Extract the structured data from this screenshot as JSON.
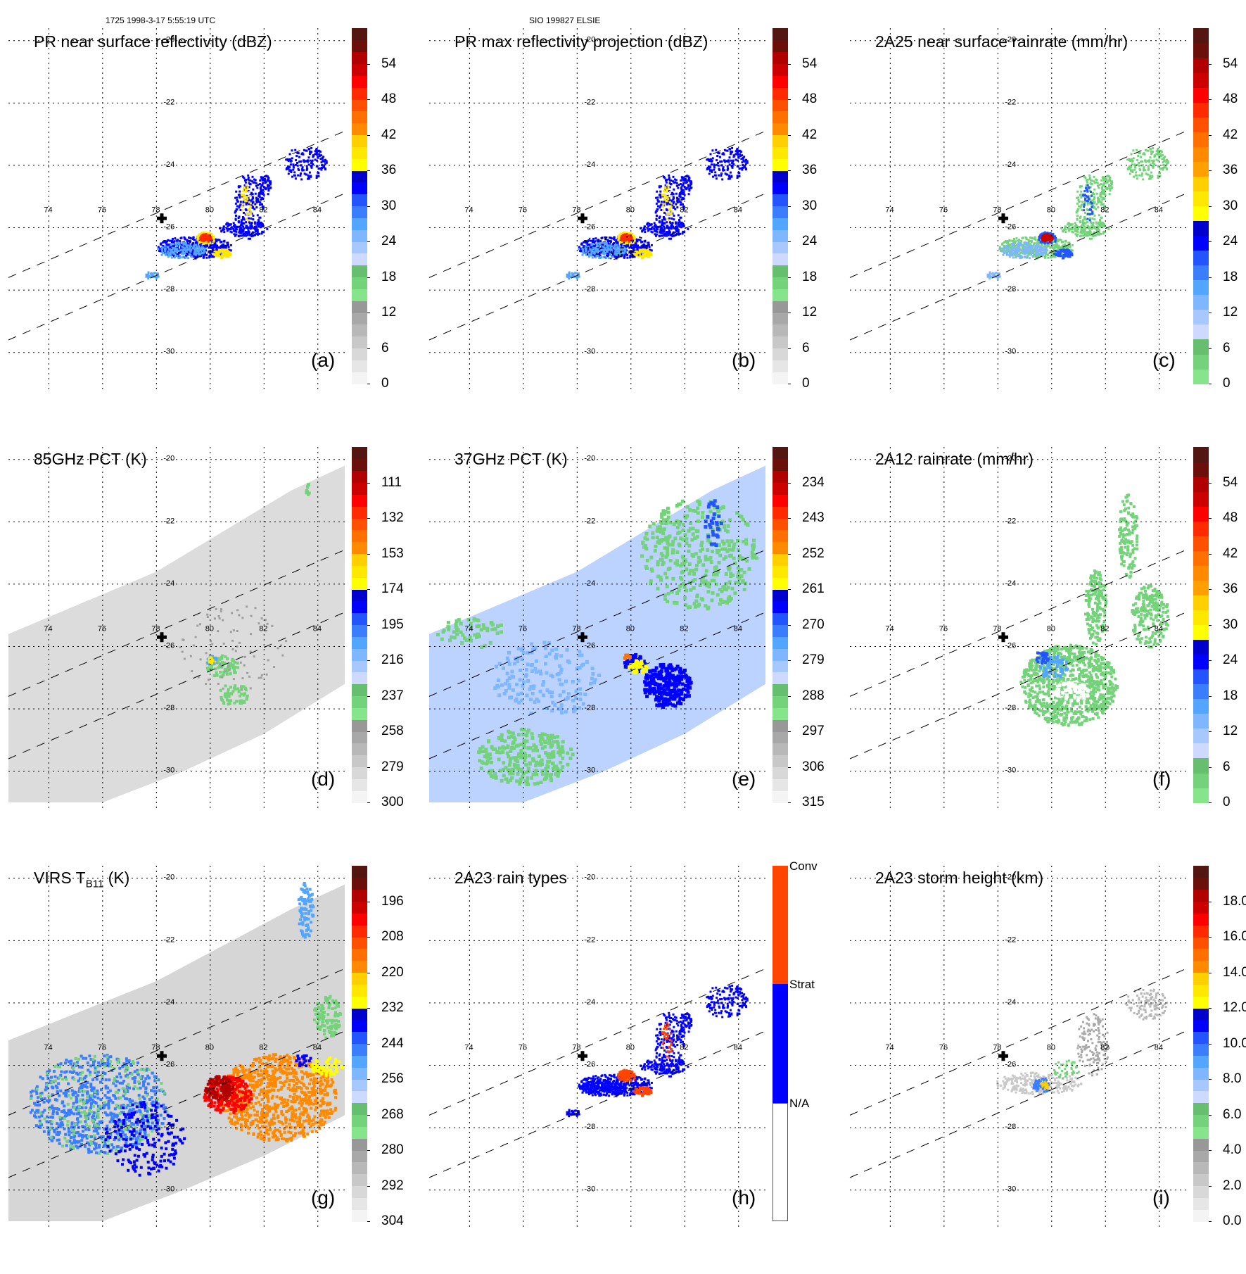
{
  "header": {
    "left": "1725 1998-3-17 5:55:19 UTC",
    "center": "SIO 199827 ELSIE"
  },
  "map_axes": {
    "longitudes": [
      74,
      76,
      78,
      80,
      82,
      84
    ],
    "latitudes": [
      -20,
      -22,
      -24,
      -26,
      -28,
      -30
    ],
    "lon_range": [
      72.5,
      85.0
    ],
    "lat_range": [
      -31.0,
      -19.6
    ],
    "storm_center": {
      "lon": 78.2,
      "lat": -25.7,
      "icon": "plus-marker-icon"
    },
    "swath_edge_lines": "dashed"
  },
  "panels": [
    {
      "id": "a",
      "title": "PR near surface reflectivity (dBZ)",
      "letter": "(a)",
      "colorbar": {
        "labels": [
          "54",
          "48",
          "42",
          "36",
          "30",
          "24",
          "18",
          "12",
          "6",
          "0"
        ],
        "type": "rainbow60"
      },
      "field": "pr-narrow"
    },
    {
      "id": "b",
      "title": "PR max reflectivity projection (dBZ)",
      "letter": "(b)",
      "colorbar": {
        "labels": [
          "54",
          "48",
          "42",
          "36",
          "30",
          "24",
          "18",
          "12",
          "6",
          "0"
        ],
        "type": "rainbow60"
      },
      "field": "pr-narrow-contour"
    },
    {
      "id": "c",
      "title": "2A25 near surface rainrate (mm/hr)",
      "letter": "(c)",
      "colorbar": {
        "labels": [
          "54",
          "48",
          "42",
          "36",
          "30",
          "24",
          "18",
          "12",
          "6",
          "0"
        ],
        "type": "rain60"
      },
      "field": "pr-narrow-green"
    },
    {
      "id": "d",
      "title": "85GHz PCT (K)",
      "letter": "(d)",
      "colorbar": {
        "labels": [
          "111",
          "132",
          "153",
          "174",
          "195",
          "216",
          "237",
          "258",
          "279",
          "300"
        ],
        "type": "rainbow60"
      },
      "field": "tmi-gray"
    },
    {
      "id": "e",
      "title": "37GHz PCT (K)",
      "letter": "(e)",
      "colorbar": {
        "labels": [
          "234",
          "243",
          "252",
          "261",
          "270",
          "279",
          "288",
          "297",
          "306",
          "315"
        ],
        "type": "rainbow60"
      },
      "field": "tmi-blue"
    },
    {
      "id": "f",
      "title": "2A12 rainrate (mm/hr)",
      "letter": "(f)",
      "colorbar": {
        "labels": [
          "54",
          "48",
          "42",
          "36",
          "30",
          "24",
          "18",
          "12",
          "6",
          "0"
        ],
        "type": "rain60"
      },
      "field": "tmi-rain"
    },
    {
      "id": "g",
      "title_main": "VIRS T",
      "title_sub": "B11",
      "title_unit": " (K)",
      "letter": "(g)",
      "colorbar": {
        "labels": [
          "196",
          "208",
          "220",
          "232",
          "244",
          "256",
          "268",
          "280",
          "292",
          "304"
        ],
        "type": "rainbow60"
      },
      "field": "virs"
    },
    {
      "id": "h",
      "title": "2A23 rain types",
      "letter": "(h)",
      "colorbar": {
        "labels": [
          "Conv",
          "Strat",
          "N/A"
        ],
        "type": "categorical",
        "categories": [
          {
            "name": "Conv",
            "color": "#ff4500"
          },
          {
            "name": "Strat",
            "color": "#0000ff"
          },
          {
            "name": "N/A",
            "color": "#ffffff"
          }
        ]
      },
      "field": "pr-types"
    },
    {
      "id": "i",
      "title": "2A23 storm height (km)",
      "letter": "(i)",
      "colorbar": {
        "labels": [
          "18.0",
          "16.0",
          "14.0",
          "12.0",
          "10.0",
          "8.0",
          "6.0",
          "4.0",
          "2.0",
          "0.0"
        ],
        "type": "rainbow60"
      },
      "field": "pr-height"
    }
  ],
  "colors": {
    "rainbow": [
      "#f4f4f4",
      "#e6e6e6",
      "#d8d8d8",
      "#c8c8c8",
      "#b8b8b8",
      "#a8a8a8",
      "#989898",
      "#86e58a",
      "#74d27a",
      "#66bf6e",
      "#cdd9ff",
      "#a6c8ff",
      "#7eb6ff",
      "#52a6ff",
      "#3a7dff",
      "#2255ff",
      "#0000ff",
      "#0000cc",
      "#ffff00",
      "#ffe800",
      "#ffcf00",
      "#ff8a00",
      "#ff7000",
      "#ff5000",
      "#ff2a00",
      "#ff0000",
      "#cc0000",
      "#b00000",
      "#6a0f0a",
      "#541610"
    ],
    "rain": [
      "#86e58a",
      "#74d27a",
      "#66bf6e",
      "#cdd9ff",
      "#a6c8ff",
      "#7eb6ff",
      "#52a6ff",
      "#3a7dff",
      "#2255ff",
      "#0000ff",
      "#0000cc",
      "#ffff00",
      "#ffe800",
      "#ffcf00",
      "#ffa000",
      "#ff8a00",
      "#ff7000",
      "#ff5000",
      "#ff2a00",
      "#ff0000",
      "#cc0000",
      "#b00000",
      "#6a0f0a",
      "#541610"
    ]
  }
}
